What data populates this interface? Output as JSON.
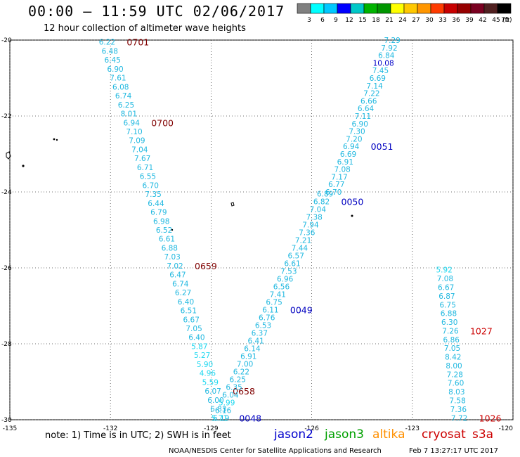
{
  "header": {
    "title": "00:00 – 11:59 UTC 02/06/2017",
    "subtitle": "12 hour collection of altimeter wave heights"
  },
  "colorbar": {
    "unit": "(ft)",
    "labels": [
      "3",
      "6",
      "9",
      "12",
      "15",
      "18",
      "21",
      "24",
      "27",
      "30",
      "33",
      "36",
      "39",
      "42",
      "45",
      "70"
    ],
    "colors": [
      "#808080",
      "#00ffff",
      "#00c8ff",
      "#0000ff",
      "#00c8c8",
      "#00b400",
      "#009600",
      "#ffff00",
      "#ffc800",
      "#ff9600",
      "#ff3c00",
      "#c80000",
      "#960000",
      "#7a0020",
      "#502020",
      "#000000"
    ]
  },
  "map": {
    "lat_labels": [
      "-20",
      "-22",
      "-24",
      "-26",
      "-28",
      "-30"
    ],
    "lon_labels": [
      "-135",
      "-132",
      "-129",
      "-126",
      "-123",
      "-120"
    ]
  },
  "chart_data": {
    "type": "scatter",
    "xlabel": "",
    "ylabel": "",
    "xlim": [
      -135,
      -120
    ],
    "ylim": [
      -30,
      -20
    ],
    "tracks": [
      {
        "name": "track-1",
        "start": [
          -132.1,
          -20.05
        ],
        "end": [
          -128.7,
          -29.95
        ],
        "values": [
          "6.22",
          "6.48",
          "6.45",
          "6.90",
          "7.61",
          "6.08",
          "6.74",
          "6.25",
          "8.01",
          "6.94",
          "7.10",
          "7.09",
          "7.04",
          "7.67",
          "6.71",
          "6.55",
          "6.70",
          "7.35",
          "6.44",
          "6.79",
          "6.98",
          "6.52",
          "6.61",
          "6.88",
          "7.03",
          "7.02",
          "6.47",
          "6.74",
          "6.27",
          "6.40",
          "6.51",
          "6.67",
          "7.05",
          "6.40",
          "5.87",
          "5.27",
          "5.90",
          "4.96",
          "5.59",
          "6.07",
          "6.00",
          "6.83",
          "6.19"
        ],
        "time_labels": [
          {
            "text": "0701",
            "at": 0
          },
          {
            "text": "0700",
            "at": 9
          },
          {
            "text": "0659",
            "at": 25
          },
          {
            "text": "0658",
            "at": 39
          }
        ]
      },
      {
        "name": "track-2",
        "start": [
          -128.75,
          -29.95
        ],
        "end": [
          -125.6,
          -24.05
        ],
        "values": [
          "5.71",
          "6.16",
          "5.99",
          "6.04",
          "6.35",
          "6.25",
          "6.22",
          "7.00",
          "6.91",
          "6.14",
          "6.41",
          "6.37",
          "6.53",
          "6.76",
          "6.11",
          "6.75",
          "7.41",
          "6.56",
          "6.96",
          "7.53",
          "6.61",
          "6.57",
          "7.44",
          "7.21",
          "7.36",
          "7.94",
          "7.38",
          "7.04",
          "6.82",
          "6.89"
        ],
        "time_labels": [
          {
            "text": "0048",
            "at": 0
          },
          {
            "text": "0049",
            "at": 14
          },
          {
            "text": "0050",
            "at": 28
          }
        ]
      },
      {
        "name": "track-3",
        "start": [
          -125.35,
          -24.0
        ],
        "end": [
          -123.6,
          -20.0
        ],
        "values": [
          "6.70",
          "6.77",
          "7.17",
          "7.08",
          "6.91",
          "6.69",
          "6.94",
          "7.20",
          "7.30",
          "6.90",
          "7.11",
          "6.64",
          "6.66",
          "7.22",
          "7.14",
          "6.69",
          "7.45",
          "10.08",
          "6.84",
          "7.92",
          "7.29"
        ],
        "time_labels": [
          {
            "text": "0051",
            "at": 6
          }
        ]
      },
      {
        "name": "track-4",
        "start": [
          -122.05,
          -26.05
        ],
        "end": [
          -121.6,
          -29.95
        ],
        "values": [
          "5.92",
          "7.08",
          "6.67",
          "6.87",
          "6.75",
          "6.88",
          "6.30",
          "7.26",
          "6.86",
          "7.05",
          "8.42",
          "8.00",
          "7.28",
          "7.60",
          "8.03",
          "7.58",
          "7.36",
          "7.72"
        ],
        "time_labels": [
          {
            "text": "1027",
            "at": 7
          },
          {
            "text": "1026",
            "at": 17
          }
        ]
      }
    ]
  },
  "legend": {
    "note": "note: 1) Time is in UTC; 2) SWH is in feet",
    "satellites": [
      {
        "name": "jason2",
        "color": "#0000cc"
      },
      {
        "name": "jason3",
        "color": "#00a000"
      },
      {
        "name": "altika",
        "color": "#ff9000"
      },
      {
        "name": "cryosat",
        "color": "#cc0000"
      },
      {
        "name": "s3a",
        "color": "#cc0000"
      }
    ]
  },
  "footer": {
    "credit": "NOAA/NESDIS Center for Satellite Applications and Research",
    "timestamp": "Feb  7 13:27:17 UTC 2017"
  }
}
